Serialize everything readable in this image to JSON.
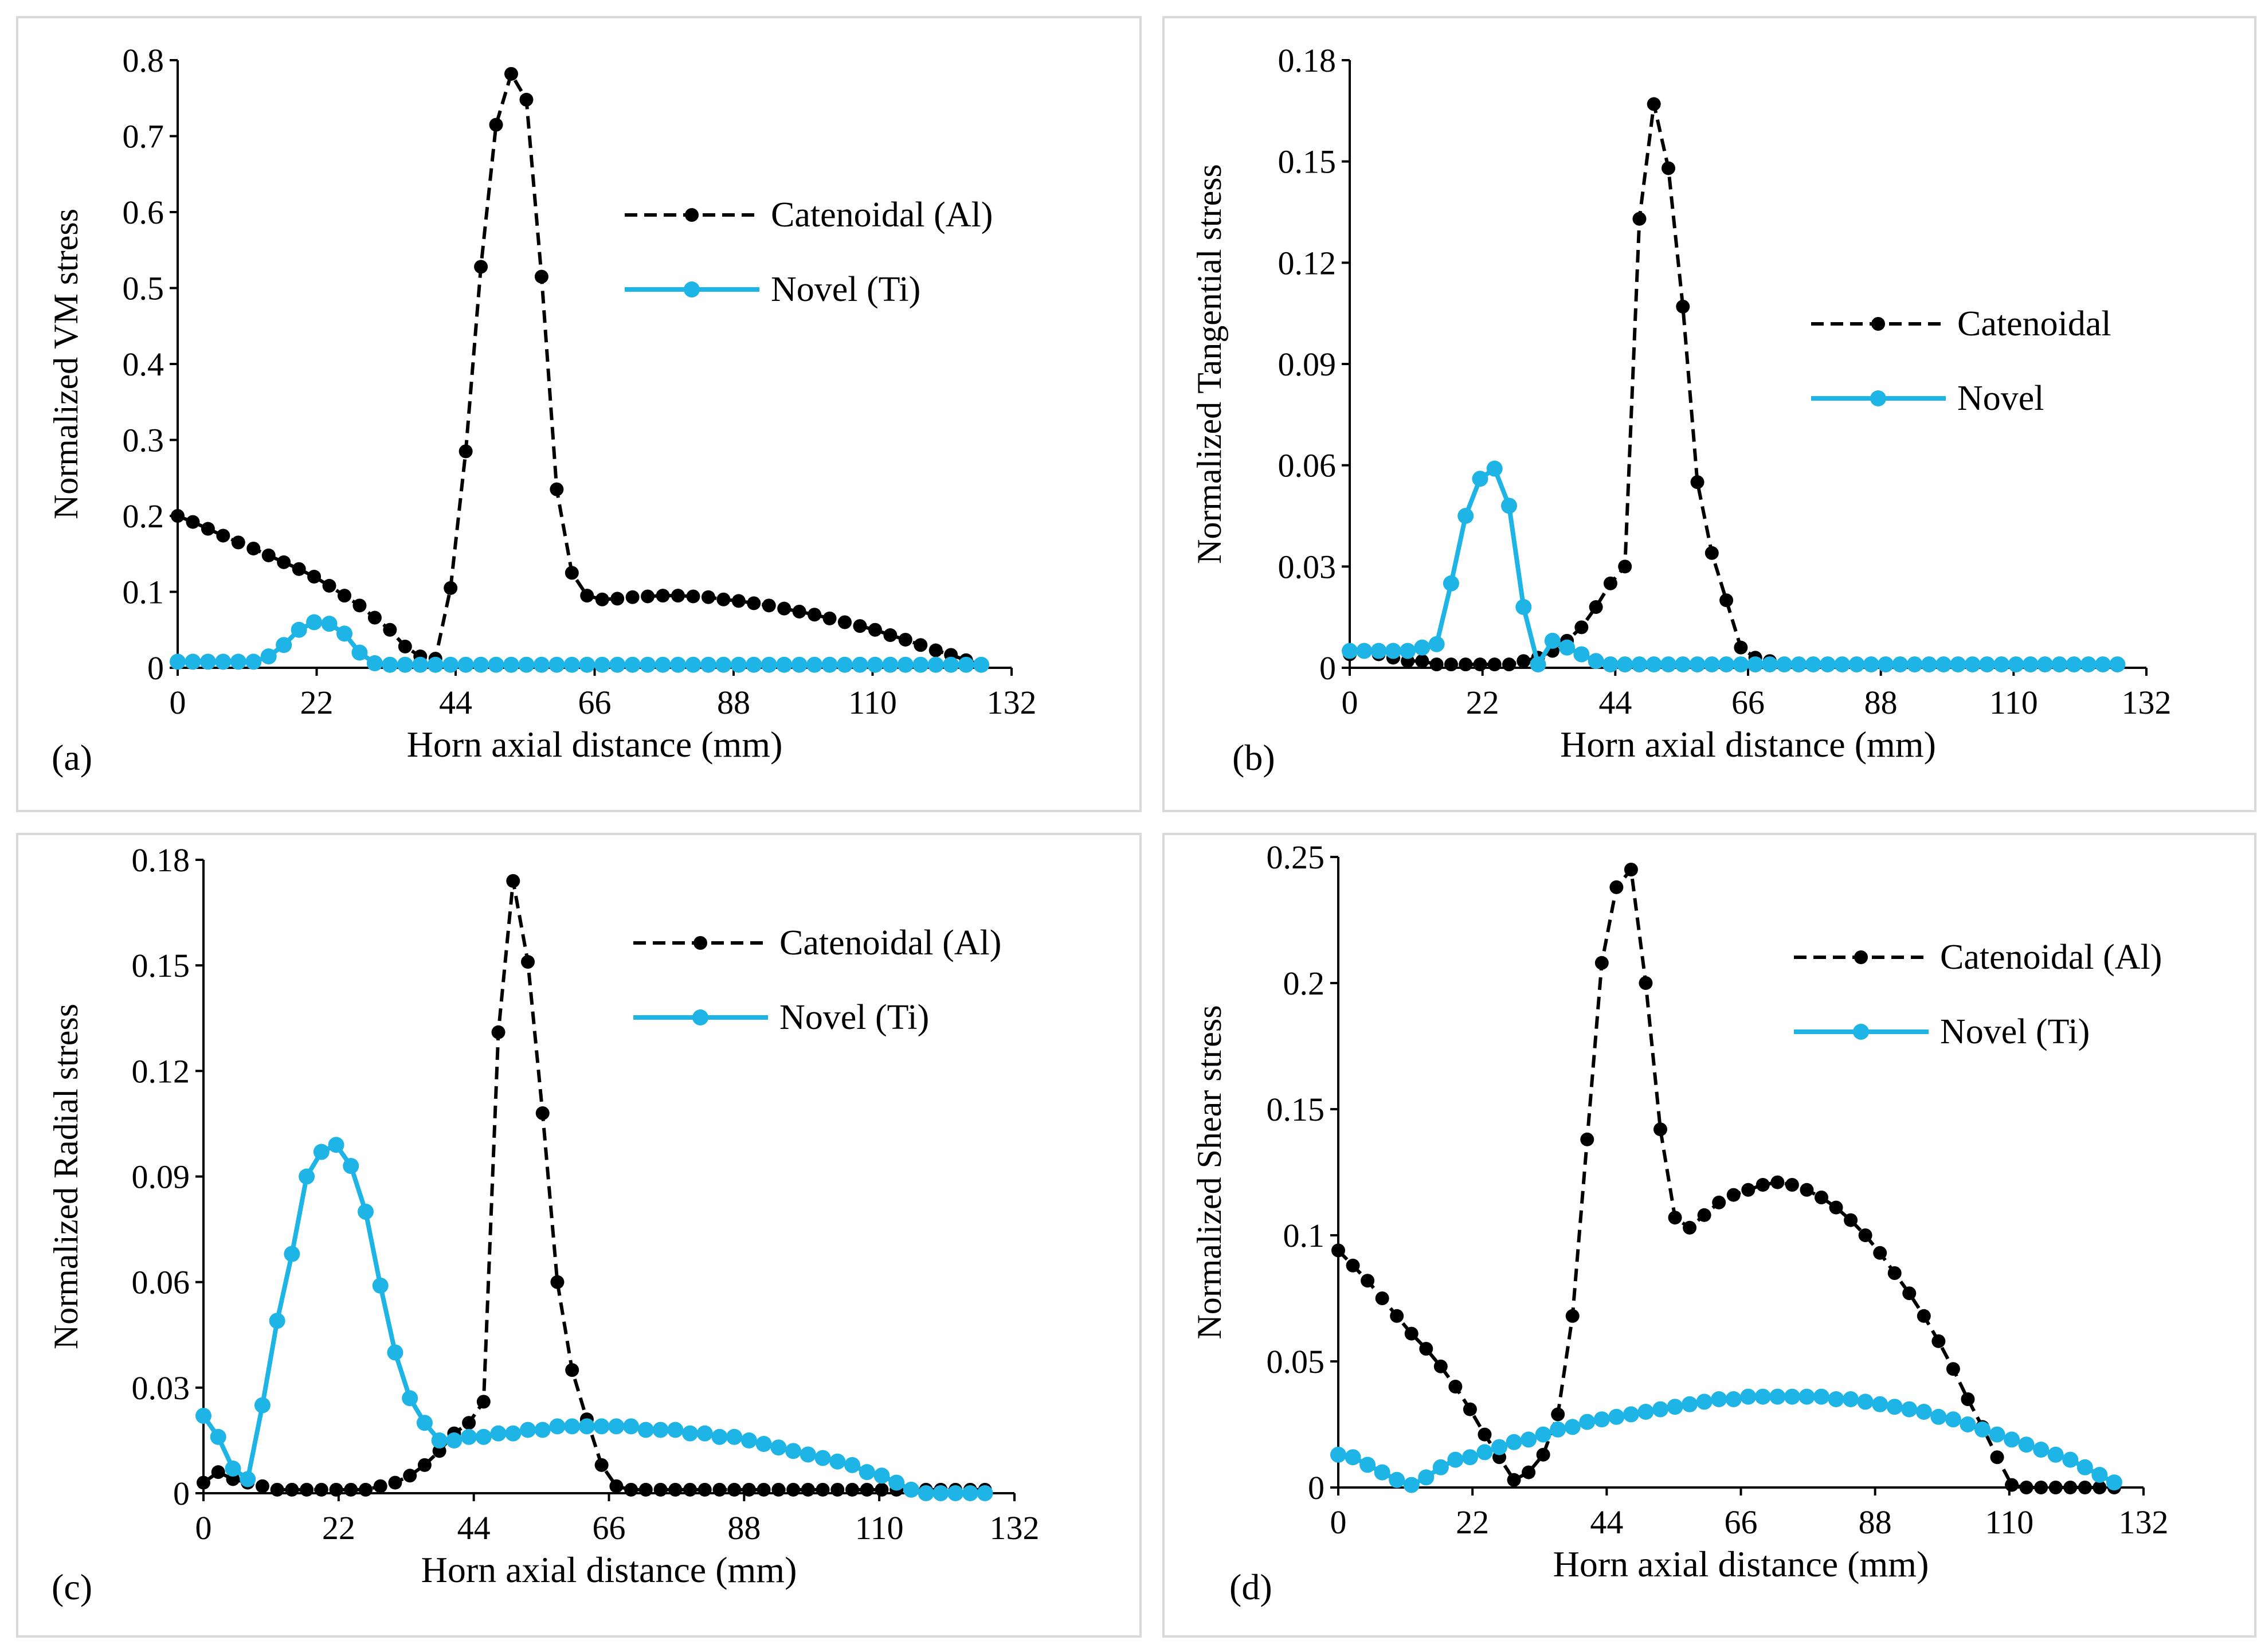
{
  "figure": {
    "colors": {
      "catenoidal": "#000000",
      "novel": "#1EB4E6",
      "frame": "#D9D9D9"
    },
    "panels_order": [
      "a",
      "b",
      "c",
      "d"
    ]
  },
  "chart_data": [
    {
      "id": "a",
      "type": "line",
      "panel_label": "(a)",
      "title": "",
      "xlabel": "Horn axial distance (mm)",
      "ylabel": "Normalized VM stress",
      "xlim": [
        0,
        132
      ],
      "xticks": [
        "0",
        "22",
        "44",
        "66",
        "88",
        "110",
        "132"
      ],
      "ylim": [
        0,
        0.8
      ],
      "yticks": [
        "0",
        "0.1",
        "0.2",
        "0.3",
        "0.4",
        "0.5",
        "0.6",
        "0.7",
        "0.8"
      ],
      "legend_position": "top-right",
      "series": [
        {
          "name": "Catenoidal (Al)",
          "style": "dashed",
          "x": [
            0,
            2.4,
            4.8,
            7.2,
            9.6,
            12,
            14.4,
            16.8,
            19.2,
            21.6,
            24,
            26.4,
            28.8,
            31.2,
            33.6,
            36,
            38.4,
            40.8,
            43.2,
            45.6,
            48,
            50.4,
            52.8,
            55.2,
            57.6,
            60,
            62.4,
            64.8,
            67.2,
            69.6,
            72,
            74.4,
            76.8,
            79.2,
            81.6,
            84,
            86.4,
            88.8,
            91.2,
            93.6,
            96,
            98.4,
            100.8,
            103.2,
            105.6,
            108,
            110.4,
            112.8,
            115.2,
            117.6,
            120,
            122.4,
            124.8,
            127.2
          ],
          "y": [
            0.2,
            0.192,
            0.183,
            0.174,
            0.165,
            0.157,
            0.148,
            0.139,
            0.13,
            0.12,
            0.108,
            0.095,
            0.082,
            0.066,
            0.05,
            0.028,
            0.015,
            0.012,
            0.105,
            0.285,
            0.528,
            0.715,
            0.782,
            0.748,
            0.515,
            0.235,
            0.125,
            0.095,
            0.09,
            0.091,
            0.093,
            0.094,
            0.095,
            0.095,
            0.094,
            0.093,
            0.09,
            0.088,
            0.085,
            0.082,
            0.078,
            0.074,
            0.07,
            0.065,
            0.06,
            0.055,
            0.05,
            0.043,
            0.037,
            0.03,
            0.023,
            0.017,
            0.01,
            0.004
          ]
        },
        {
          "name": "Novel (Ti)",
          "style": "solid",
          "x": [
            0,
            2.4,
            4.8,
            7.2,
            9.6,
            12,
            14.4,
            16.8,
            19.2,
            21.6,
            24,
            26.4,
            28.8,
            31.2,
            33.6,
            36,
            38.4,
            40.8,
            43.2,
            45.6,
            48,
            50.4,
            52.8,
            55.2,
            57.6,
            60,
            62.4,
            64.8,
            67.2,
            69.6,
            72,
            74.4,
            76.8,
            79.2,
            81.6,
            84,
            86.4,
            88.8,
            91.2,
            93.6,
            96,
            98.4,
            100.8,
            103.2,
            105.6,
            108,
            110.4,
            112.8,
            115.2,
            117.6,
            120,
            122.4,
            124.8,
            127.2
          ],
          "y": [
            0.008,
            0.008,
            0.008,
            0.008,
            0.008,
            0.008,
            0.015,
            0.03,
            0.05,
            0.06,
            0.058,
            0.045,
            0.02,
            0.006,
            0.004,
            0.004,
            0.004,
            0.004,
            0.004,
            0.004,
            0.004,
            0.004,
            0.004,
            0.004,
            0.004,
            0.004,
            0.004,
            0.004,
            0.004,
            0.004,
            0.004,
            0.004,
            0.004,
            0.004,
            0.004,
            0.004,
            0.004,
            0.004,
            0.004,
            0.004,
            0.004,
            0.004,
            0.004,
            0.004,
            0.004,
            0.004,
            0.004,
            0.004,
            0.004,
            0.004,
            0.004,
            0.004,
            0.004,
            0.004
          ]
        }
      ]
    },
    {
      "id": "b",
      "type": "line",
      "panel_label": "(b)",
      "title": "",
      "xlabel": "Horn axial distance (mm)",
      "ylabel": "Normalized Tangential stress",
      "xlim": [
        0,
        132
      ],
      "xticks": [
        "0",
        "22",
        "44",
        "66",
        "88",
        "110",
        "132"
      ],
      "ylim": [
        0,
        0.18
      ],
      "yticks": [
        "0",
        "0.03",
        "0.06",
        "0.09",
        "0.12",
        "0.15",
        "0.18"
      ],
      "legend_position": "right",
      "series": [
        {
          "name": "Catenoidal",
          "style": "dashed",
          "x": [
            0,
            2.4,
            4.8,
            7.2,
            9.6,
            12,
            14.4,
            16.8,
            19.2,
            21.6,
            24,
            26.4,
            28.8,
            31.2,
            33.6,
            36,
            38.4,
            40.8,
            43.2,
            45.6,
            48,
            50.4,
            52.8,
            55.2,
            57.6,
            60,
            62.4,
            64.8,
            67.2,
            69.6,
            72,
            74.4,
            76.8,
            79.2,
            81.6,
            84,
            86.4,
            88.8,
            91.2,
            93.6,
            96,
            98.4,
            100.8,
            103.2,
            105.6,
            108,
            110.4,
            112.8,
            115.2,
            117.6,
            120,
            122.4,
            124.8,
            127.2
          ],
          "y": [
            0.004,
            0.005,
            0.004,
            0.003,
            0.002,
            0.002,
            0.001,
            0.001,
            0.001,
            0.001,
            0.001,
            0.001,
            0.002,
            0.003,
            0.005,
            0.008,
            0.012,
            0.018,
            0.025,
            0.03,
            0.133,
            0.167,
            0.148,
            0.107,
            0.055,
            0.034,
            0.02,
            0.006,
            0.003,
            0.002,
            0.001,
            0.001,
            0.001,
            0.001,
            0.001,
            0.001,
            0.001,
            0.001,
            0.001,
            0.001,
            0.001,
            0.001,
            0.001,
            0.001,
            0.001,
            0.001,
            0.001,
            0.001,
            0.001,
            0.001,
            0.001,
            0.001,
            0.001,
            0.001
          ]
        },
        {
          "name": "Novel",
          "style": "solid",
          "x": [
            0,
            2.4,
            4.8,
            7.2,
            9.6,
            12,
            14.4,
            16.8,
            19.2,
            21.6,
            24,
            26.4,
            28.8,
            31.2,
            33.6,
            36,
            38.4,
            40.8,
            43.2,
            45.6,
            48,
            50.4,
            52.8,
            55.2,
            57.6,
            60,
            62.4,
            64.8,
            67.2,
            69.6,
            72,
            74.4,
            76.8,
            79.2,
            81.6,
            84,
            86.4,
            88.8,
            91.2,
            93.6,
            96,
            98.4,
            100.8,
            103.2,
            105.6,
            108,
            110.4,
            112.8,
            115.2,
            117.6,
            120,
            122.4,
            124.8,
            127.2
          ],
          "y": [
            0.005,
            0.005,
            0.005,
            0.005,
            0.005,
            0.006,
            0.007,
            0.025,
            0.045,
            0.056,
            0.059,
            0.048,
            0.018,
            0.001,
            0.008,
            0.006,
            0.004,
            0.002,
            0.001,
            0.001,
            0.001,
            0.001,
            0.001,
            0.001,
            0.001,
            0.001,
            0.001,
            0.001,
            0.001,
            0.001,
            0.001,
            0.001,
            0.001,
            0.001,
            0.001,
            0.001,
            0.001,
            0.001,
            0.001,
            0.001,
            0.001,
            0.001,
            0.001,
            0.001,
            0.001,
            0.001,
            0.001,
            0.001,
            0.001,
            0.001,
            0.001,
            0.001,
            0.001,
            0.001
          ]
        }
      ]
    },
    {
      "id": "c",
      "type": "line",
      "panel_label": "(c)",
      "title": "",
      "xlabel": "Horn axial distance (mm)",
      "ylabel": "Normalized Radial stress",
      "xlim": [
        0,
        132
      ],
      "xticks": [
        "0",
        "22",
        "44",
        "66",
        "88",
        "110",
        "132"
      ],
      "ylim": [
        0,
        0.18
      ],
      "yticks": [
        "0",
        "0.03",
        "0.06",
        "0.09",
        "0.12",
        "0.15",
        "0.18"
      ],
      "legend_position": "top-right",
      "series": [
        {
          "name": "Catenoidal (Al)",
          "style": "dashed",
          "x": [
            0,
            2.4,
            4.8,
            7.2,
            9.6,
            12,
            14.4,
            16.8,
            19.2,
            21.6,
            24,
            26.4,
            28.8,
            31.2,
            33.6,
            36,
            38.4,
            40.8,
            43.2,
            45.6,
            48,
            50.4,
            52.8,
            55.2,
            57.6,
            60,
            62.4,
            64.8,
            67.2,
            69.6,
            72,
            74.4,
            76.8,
            79.2,
            81.6,
            84,
            86.4,
            88.8,
            91.2,
            93.6,
            96,
            98.4,
            100.8,
            103.2,
            105.6,
            108,
            110.4,
            112.8,
            115.2,
            117.6,
            120,
            122.4,
            124.8,
            127.2
          ],
          "y": [
            0.003,
            0.006,
            0.004,
            0.003,
            0.002,
            0.001,
            0.001,
            0.001,
            0.001,
            0.001,
            0.001,
            0.001,
            0.002,
            0.003,
            0.005,
            0.008,
            0.012,
            0.017,
            0.02,
            0.026,
            0.131,
            0.174,
            0.151,
            0.108,
            0.06,
            0.035,
            0.021,
            0.008,
            0.002,
            0.001,
            0.001,
            0.001,
            0.001,
            0.001,
            0.001,
            0.001,
            0.001,
            0.001,
            0.001,
            0.001,
            0.001,
            0.001,
            0.001,
            0.001,
            0.001,
            0.001,
            0.001,
            0.001,
            0.001,
            0.001,
            0.001,
            0.001,
            0.001,
            0.001
          ]
        },
        {
          "name": "Novel (Ti)",
          "style": "solid",
          "x": [
            0,
            2.4,
            4.8,
            7.2,
            9.6,
            12,
            14.4,
            16.8,
            19.2,
            21.6,
            24,
            26.4,
            28.8,
            31.2,
            33.6,
            36,
            38.4,
            40.8,
            43.2,
            45.6,
            48,
            50.4,
            52.8,
            55.2,
            57.6,
            60,
            62.4,
            64.8,
            67.2,
            69.6,
            72,
            74.4,
            76.8,
            79.2,
            81.6,
            84,
            86.4,
            88.8,
            91.2,
            93.6,
            96,
            98.4,
            100.8,
            103.2,
            105.6,
            108,
            110.4,
            112.8,
            115.2,
            117.6,
            120,
            122.4,
            124.8,
            127.2
          ],
          "y": [
            0.022,
            0.016,
            0.007,
            0.004,
            0.025,
            0.049,
            0.068,
            0.09,
            0.097,
            0.099,
            0.093,
            0.08,
            0.059,
            0.04,
            0.027,
            0.02,
            0.015,
            0.015,
            0.016,
            0.016,
            0.017,
            0.017,
            0.018,
            0.018,
            0.019,
            0.019,
            0.019,
            0.019,
            0.019,
            0.019,
            0.018,
            0.018,
            0.018,
            0.017,
            0.017,
            0.016,
            0.016,
            0.015,
            0.014,
            0.013,
            0.012,
            0.011,
            0.01,
            0.009,
            0.008,
            0.006,
            0.005,
            0.003,
            0.001,
            0.0,
            0.0,
            0.0,
            0.0,
            0.0
          ]
        }
      ]
    },
    {
      "id": "d",
      "type": "line",
      "panel_label": "(d)",
      "title": "",
      "xlabel": "Horn axial distance (mm)",
      "ylabel": "Normalized Shear stress",
      "xlim": [
        0,
        132
      ],
      "xticks": [
        "0",
        "22",
        "44",
        "66",
        "88",
        "110",
        "132"
      ],
      "ylim": [
        0,
        0.25
      ],
      "yticks": [
        "0",
        "0.05",
        "0.1",
        "0.15",
        "0.2",
        "0.25"
      ],
      "legend_position": "top-right",
      "series": [
        {
          "name": "Catenoidal (Al)",
          "style": "dashed",
          "x": [
            0,
            2.4,
            4.8,
            7.2,
            9.6,
            12,
            14.4,
            16.8,
            19.2,
            21.6,
            24,
            26.4,
            28.8,
            31.2,
            33.6,
            36,
            38.4,
            40.8,
            43.2,
            45.6,
            48,
            50.4,
            52.8,
            55.2,
            57.6,
            60,
            62.4,
            64.8,
            67.2,
            69.6,
            72,
            74.4,
            76.8,
            79.2,
            81.6,
            84,
            86.4,
            88.8,
            91.2,
            93.6,
            96,
            98.4,
            100.8,
            103.2,
            105.6,
            108,
            110.4,
            112.8,
            115.2,
            117.6,
            120,
            122.4,
            124.8,
            127.2
          ],
          "y": [
            0.094,
            0.088,
            0.082,
            0.075,
            0.068,
            0.061,
            0.055,
            0.048,
            0.04,
            0.031,
            0.021,
            0.012,
            0.003,
            0.006,
            0.013,
            0.029,
            0.068,
            0.138,
            0.208,
            0.238,
            0.245,
            0.2,
            0.142,
            0.107,
            0.103,
            0.108,
            0.113,
            0.116,
            0.118,
            0.12,
            0.121,
            0.12,
            0.118,
            0.115,
            0.111,
            0.106,
            0.1,
            0.093,
            0.085,
            0.077,
            0.068,
            0.058,
            0.047,
            0.035,
            0.024,
            0.012,
            0.001,
            0.0,
            0.0,
            0.0,
            0.0,
            0.0,
            0.0,
            0.0
          ]
        },
        {
          "name": "Novel (Ti)",
          "style": "solid",
          "x": [
            0,
            2.4,
            4.8,
            7.2,
            9.6,
            12,
            14.4,
            16.8,
            19.2,
            21.6,
            24,
            26.4,
            28.8,
            31.2,
            33.6,
            36,
            38.4,
            40.8,
            43.2,
            45.6,
            48,
            50.4,
            52.8,
            55.2,
            57.6,
            60,
            62.4,
            64.8,
            67.2,
            69.6,
            72,
            74.4,
            76.8,
            79.2,
            81.6,
            84,
            86.4,
            88.8,
            91.2,
            93.6,
            96,
            98.4,
            100.8,
            103.2,
            105.6,
            108,
            110.4,
            112.8,
            115.2,
            117.6,
            120,
            122.4,
            124.8,
            127.2
          ],
          "y": [
            0.013,
            0.012,
            0.009,
            0.006,
            0.003,
            0.001,
            0.004,
            0.008,
            0.011,
            0.012,
            0.014,
            0.016,
            0.018,
            0.019,
            0.021,
            0.023,
            0.024,
            0.026,
            0.027,
            0.028,
            0.029,
            0.03,
            0.031,
            0.032,
            0.033,
            0.034,
            0.035,
            0.035,
            0.036,
            0.036,
            0.036,
            0.036,
            0.036,
            0.036,
            0.035,
            0.035,
            0.034,
            0.033,
            0.032,
            0.031,
            0.03,
            0.028,
            0.027,
            0.025,
            0.023,
            0.021,
            0.019,
            0.017,
            0.015,
            0.013,
            0.011,
            0.008,
            0.005,
            0.002
          ]
        }
      ]
    }
  ]
}
